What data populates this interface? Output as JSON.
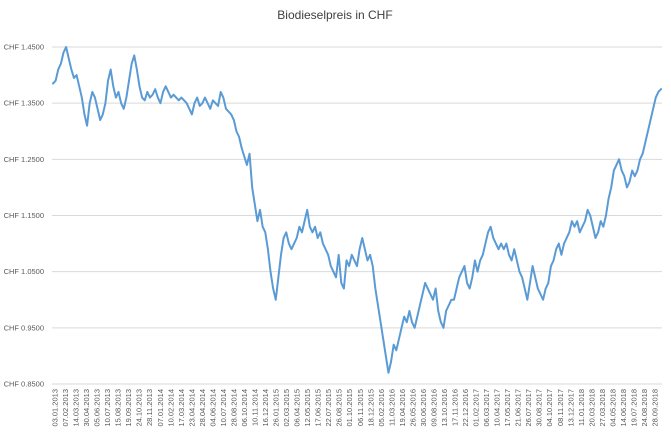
{
  "chart_data": {
    "type": "line",
    "title": "Biodieselpreis in CHF",
    "xlabel": "",
    "ylabel": "",
    "ylim": [
      0.85,
      1.45
    ],
    "y_ticks": [
      0.85,
      0.95,
      1.05,
      1.15,
      1.25,
      1.35,
      1.45
    ],
    "y_tick_labels": [
      "CHF 0.8500",
      "CHF 0.9500",
      "CHF 1.0500",
      "CHF 1.1500",
      "CHF 1.2500",
      "CHF 1.3500",
      "CHF 1.4500"
    ],
    "grid": true,
    "legend": "none",
    "colors": {
      "series": "#5b9bd5",
      "grid": "#d9d9d9",
      "text": "#595959"
    },
    "x_tick_labels": [
      "03.01.2013",
      "07.02.2013",
      "14.03.2013",
      "30.04.2013",
      "05.06.2013",
      "10.07.2013",
      "15.08.2013",
      "19.09.2013",
      "24.10.2013",
      "28.11.2013",
      "07.01.2014",
      "10.02.2014",
      "17.03.2014",
      "23.04.2014",
      "28.04.2014",
      "04.06.2014",
      "10.07.2014",
      "28.08.2014",
      "06.10.2014",
      "10.11.2014",
      "16.12.2014",
      "26.01.2015",
      "02.03.2015",
      "06.04.2015",
      "12.05.2015",
      "17.06.2015",
      "22.07.2015",
      "26.08.2015",
      "01.10.2015",
      "06.11.2015",
      "18.12.2015",
      "05.02.2016",
      "11.03.2016",
      "19.04.2016",
      "26.05.2016",
      "30.06.2016",
      "09.08.2016",
      "13.10.2016",
      "17.11.2016",
      "22.12.2016",
      "01.02.2017",
      "06.03.2017",
      "10.04.2017",
      "17.05.2017",
      "21.06.2017",
      "26.07.2017",
      "30.08.2017",
      "04.10.2017",
      "08.11.2017",
      "13.12.2017",
      "11.01.2018",
      "20.03.2018",
      "27.03.2018",
      "04.05.2018",
      "14.06.2018",
      "19.07.2018",
      "24.08.2018",
      "28.09.2018"
    ],
    "series": [
      {
        "values": [
          1.385,
          1.39,
          1.41,
          1.42,
          1.44,
          1.45,
          1.43,
          1.41,
          1.395,
          1.4,
          1.38,
          1.36,
          1.33,
          1.31,
          1.35,
          1.37,
          1.36,
          1.34,
          1.32,
          1.33,
          1.35,
          1.39,
          1.41,
          1.38,
          1.36,
          1.37,
          1.35,
          1.34,
          1.36,
          1.39,
          1.42,
          1.435,
          1.41,
          1.38,
          1.36,
          1.355,
          1.37,
          1.36,
          1.365,
          1.375,
          1.36,
          1.35,
          1.37,
          1.38,
          1.37,
          1.36,
          1.365,
          1.36,
          1.355,
          1.36,
          1.355,
          1.35,
          1.34,
          1.33,
          1.35,
          1.36,
          1.345,
          1.35,
          1.36,
          1.35,
          1.34,
          1.355,
          1.35,
          1.345,
          1.37,
          1.36,
          1.34,
          1.335,
          1.33,
          1.32,
          1.3,
          1.29,
          1.27,
          1.255,
          1.24,
          1.26,
          1.2,
          1.17,
          1.14,
          1.16,
          1.13,
          1.12,
          1.09,
          1.05,
          1.02,
          1.0,
          1.04,
          1.08,
          1.11,
          1.12,
          1.1,
          1.09,
          1.1,
          1.11,
          1.13,
          1.12,
          1.14,
          1.16,
          1.13,
          1.12,
          1.13,
          1.11,
          1.12,
          1.1,
          1.09,
          1.08,
          1.06,
          1.05,
          1.04,
          1.08,
          1.03,
          1.02,
          1.07,
          1.06,
          1.08,
          1.07,
          1.06,
          1.09,
          1.11,
          1.09,
          1.07,
          1.08,
          1.06,
          1.02,
          0.99,
          0.96,
          0.93,
          0.9,
          0.87,
          0.89,
          0.92,
          0.91,
          0.93,
          0.95,
          0.97,
          0.96,
          0.98,
          0.96,
          0.95,
          0.97,
          0.99,
          1.01,
          1.03,
          1.02,
          1.01,
          1.0,
          1.02,
          0.98,
          0.96,
          0.95,
          0.98,
          0.99,
          1.0,
          1.0,
          1.02,
          1.04,
          1.05,
          1.06,
          1.03,
          1.02,
          1.04,
          1.07,
          1.05,
          1.07,
          1.08,
          1.1,
          1.12,
          1.13,
          1.11,
          1.1,
          1.09,
          1.1,
          1.09,
          1.1,
          1.08,
          1.07,
          1.09,
          1.07,
          1.05,
          1.04,
          1.02,
          1.0,
          1.03,
          1.06,
          1.04,
          1.02,
          1.01,
          1.0,
          1.02,
          1.03,
          1.06,
          1.07,
          1.09,
          1.1,
          1.08,
          1.1,
          1.11,
          1.12,
          1.14,
          1.13,
          1.14,
          1.12,
          1.13,
          1.14,
          1.16,
          1.15,
          1.13,
          1.11,
          1.12,
          1.14,
          1.13,
          1.15,
          1.18,
          1.2,
          1.23,
          1.24,
          1.25,
          1.23,
          1.22,
          1.2,
          1.21,
          1.23,
          1.22,
          1.23,
          1.25,
          1.26,
          1.28,
          1.3,
          1.32,
          1.34,
          1.36,
          1.37,
          1.375
        ]
      }
    ]
  }
}
